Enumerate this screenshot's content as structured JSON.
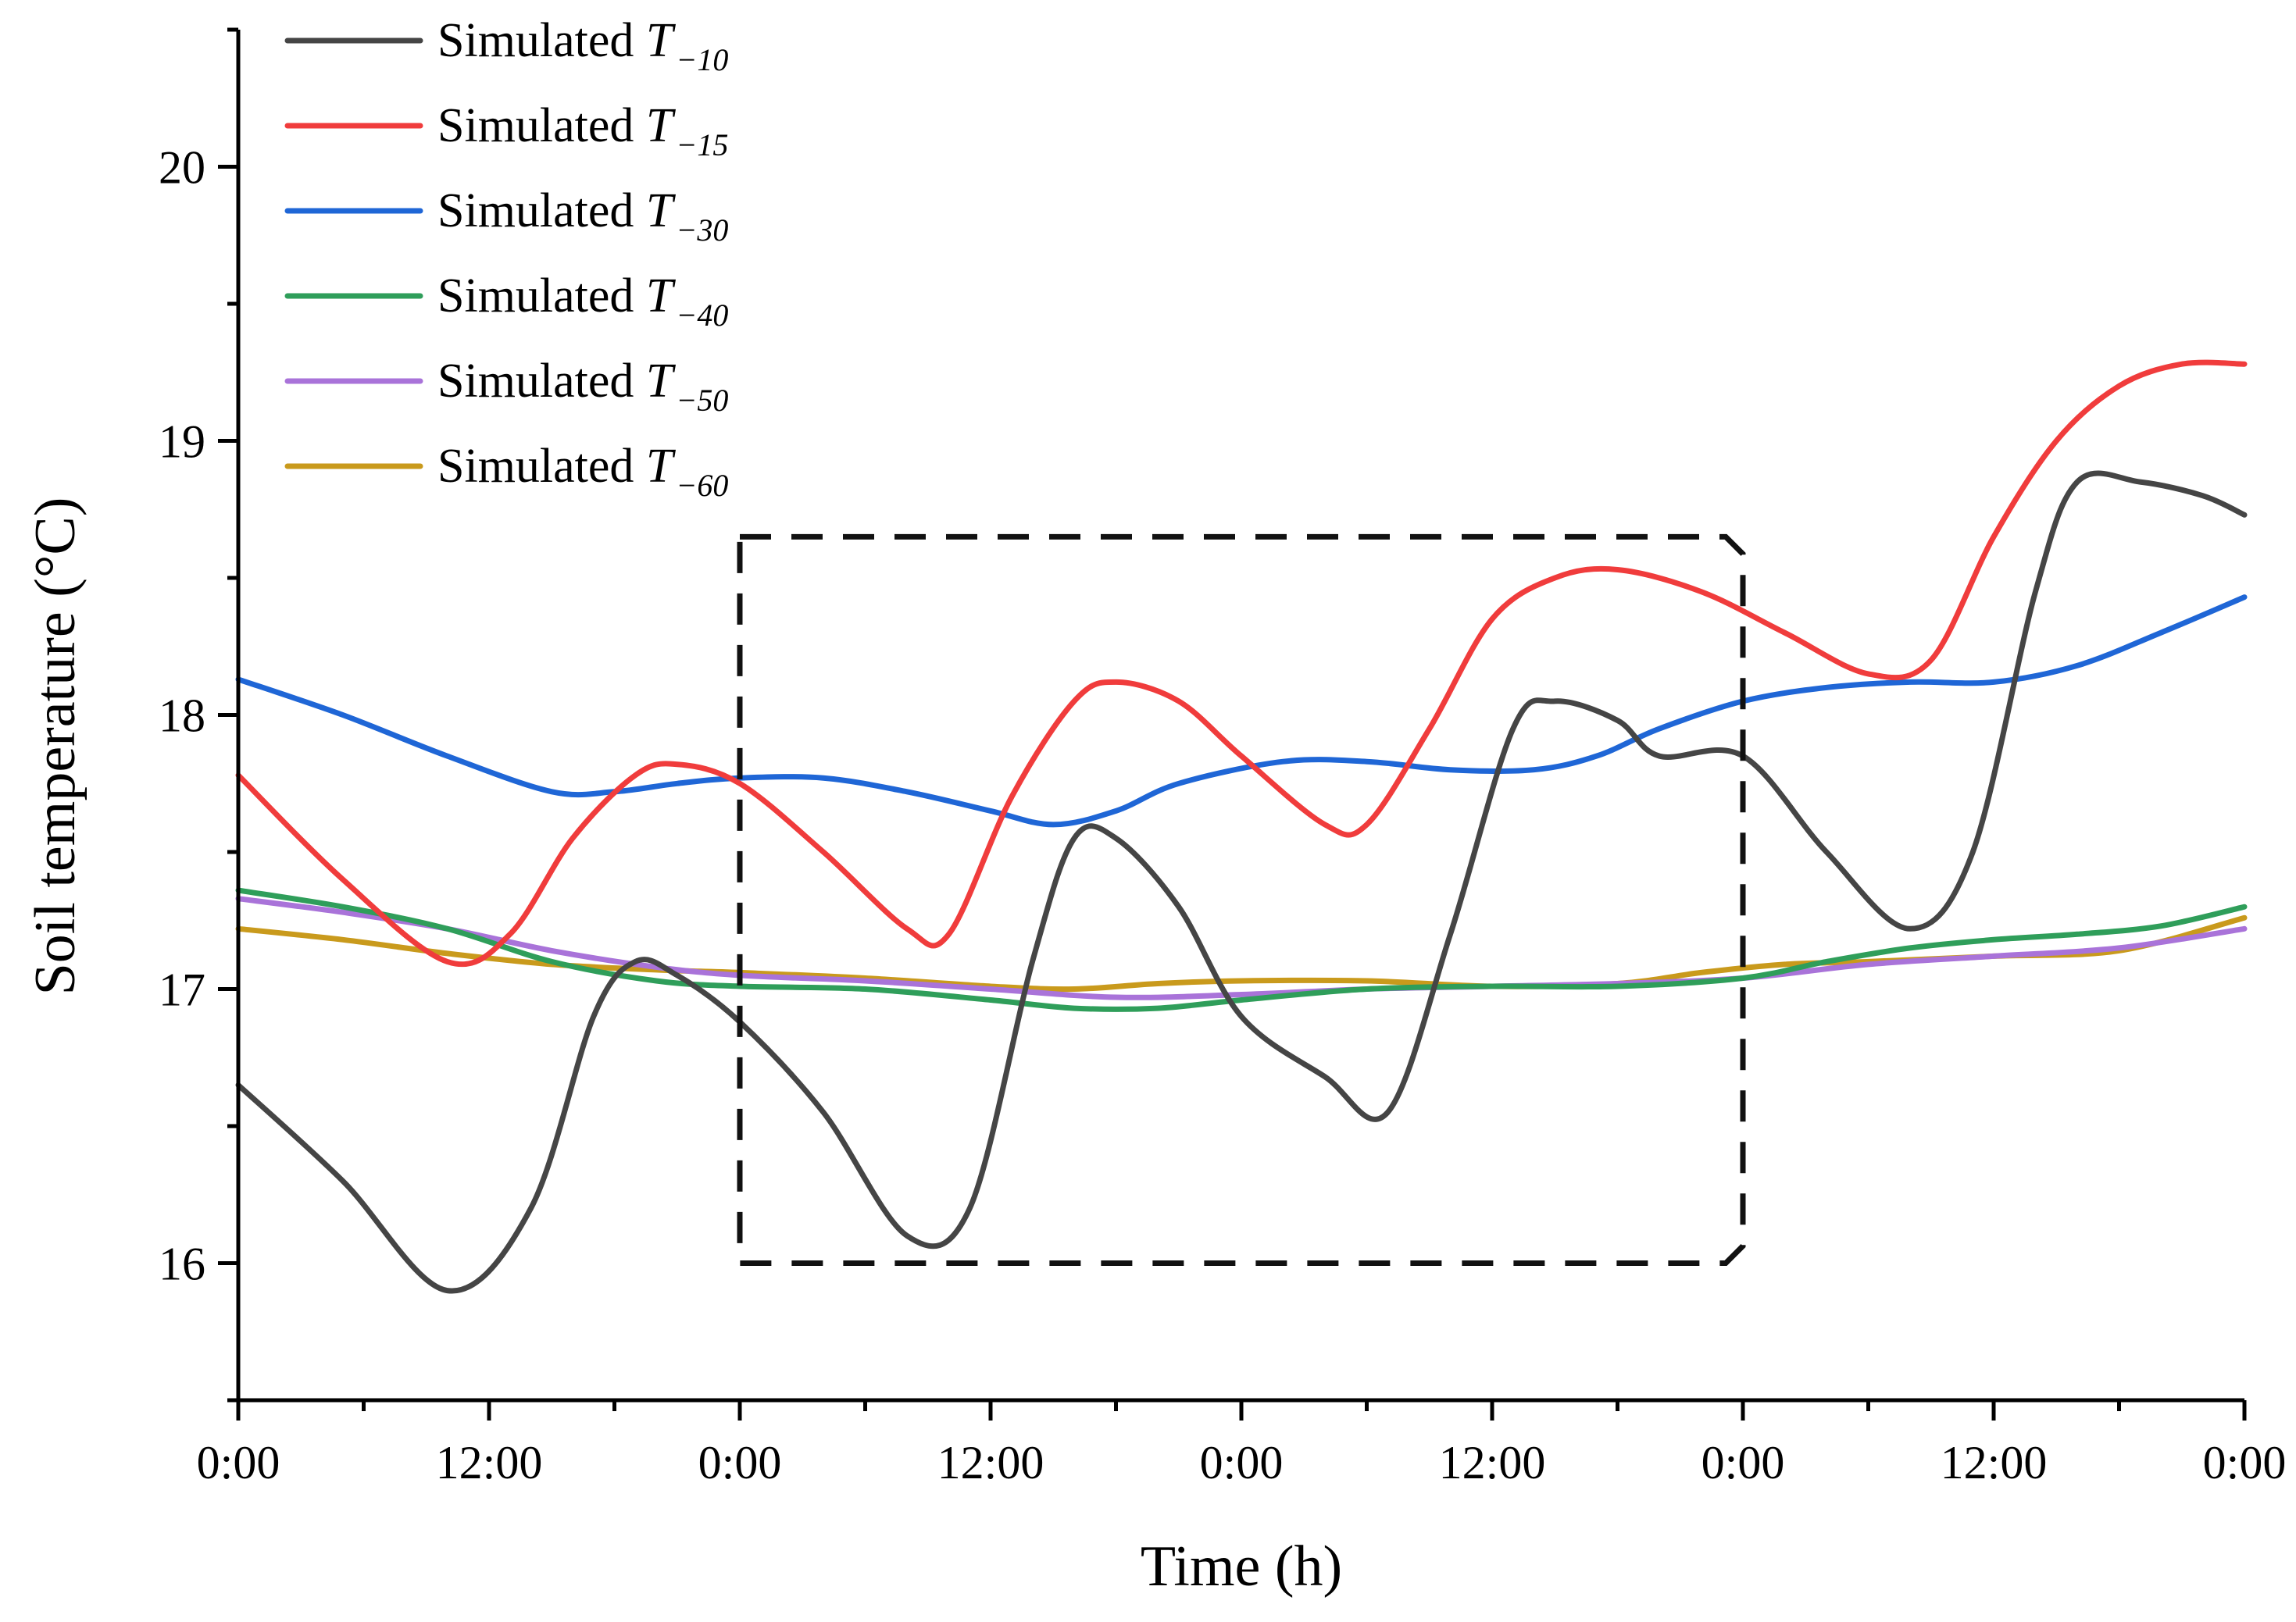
{
  "chart_data": {
    "type": "line",
    "xlabel": "Time (h)",
    "ylabel": "Soil temperature (°C)",
    "xlim": [
      0,
      96
    ],
    "ylim": [
      15.5,
      20.5
    ],
    "x_ticks": [
      0,
      12,
      24,
      36,
      48,
      60,
      72,
      84,
      96
    ],
    "x_tick_labels": [
      "0:00",
      "12:00",
      "0:00",
      "12:00",
      "0:00",
      "12:00",
      "0:00",
      "12:00",
      "0:00"
    ],
    "y_ticks": [
      16,
      17,
      18,
      19,
      20
    ],
    "y_tick_labels": [
      "16",
      "17",
      "18",
      "19",
      "20"
    ],
    "legend_position": "top-left",
    "highlight_box": {
      "x_range": [
        24,
        72
      ],
      "y_range": [
        16,
        18.65
      ],
      "style": "dashed"
    },
    "series": [
      {
        "name": "Simulated T−10",
        "prefix": "Simulated ",
        "symbol": "T",
        "subscript": "−10",
        "color": "#454545",
        "points": [
          [
            0,
            16.65
          ],
          [
            5,
            16.3
          ],
          [
            10,
            15.9
          ],
          [
            14,
            16.2
          ],
          [
            17,
            16.9
          ],
          [
            19,
            17.1
          ],
          [
            21,
            17.05
          ],
          [
            24,
            16.88
          ],
          [
            28,
            16.55
          ],
          [
            32,
            16.1
          ],
          [
            35,
            16.2
          ],
          [
            38,
            17.1
          ],
          [
            40,
            17.55
          ],
          [
            42,
            17.55
          ],
          [
            45,
            17.3
          ],
          [
            48,
            16.9
          ],
          [
            52,
            16.68
          ],
          [
            55,
            16.55
          ],
          [
            58,
            17.2
          ],
          [
            61,
            17.95
          ],
          [
            63,
            18.05
          ],
          [
            66,
            17.98
          ],
          [
            68,
            17.85
          ],
          [
            72,
            17.85
          ],
          [
            76,
            17.5
          ],
          [
            80,
            17.22
          ],
          [
            83,
            17.5
          ],
          [
            86,
            18.45
          ],
          [
            88,
            18.85
          ],
          [
            91,
            18.85
          ],
          [
            94,
            18.8
          ],
          [
            96,
            18.73
          ]
        ]
      },
      {
        "name": "Simulated T−15",
        "prefix": "Simulated ",
        "symbol": "T",
        "subscript": "−15",
        "color": "#f03c3c",
        "points": [
          [
            0,
            17.78
          ],
          [
            5,
            17.4
          ],
          [
            10,
            17.1
          ],
          [
            13,
            17.2
          ],
          [
            16,
            17.55
          ],
          [
            19,
            17.78
          ],
          [
            21,
            17.82
          ],
          [
            24,
            17.75
          ],
          [
            28,
            17.5
          ],
          [
            32,
            17.22
          ],
          [
            34,
            17.2
          ],
          [
            37,
            17.7
          ],
          [
            40,
            18.05
          ],
          [
            42,
            18.12
          ],
          [
            45,
            18.05
          ],
          [
            48,
            17.85
          ],
          [
            52,
            17.6
          ],
          [
            54,
            17.6
          ],
          [
            57,
            17.95
          ],
          [
            60,
            18.35
          ],
          [
            63,
            18.5
          ],
          [
            66,
            18.53
          ],
          [
            70,
            18.45
          ],
          [
            74,
            18.3
          ],
          [
            78,
            18.15
          ],
          [
            81,
            18.2
          ],
          [
            84,
            18.65
          ],
          [
            87,
            19.0
          ],
          [
            90,
            19.2
          ],
          [
            93,
            19.28
          ],
          [
            96,
            19.28
          ]
        ]
      },
      {
        "name": "Simulated T−30",
        "prefix": "Simulated ",
        "symbol": "T",
        "subscript": "−30",
        "color": "#1f66d6",
        "points": [
          [
            0,
            18.13
          ],
          [
            5,
            18.0
          ],
          [
            10,
            17.85
          ],
          [
            15,
            17.72
          ],
          [
            18,
            17.72
          ],
          [
            21,
            17.75
          ],
          [
            24,
            17.77
          ],
          [
            28,
            17.77
          ],
          [
            32,
            17.72
          ],
          [
            36,
            17.65
          ],
          [
            39,
            17.6
          ],
          [
            42,
            17.65
          ],
          [
            45,
            17.75
          ],
          [
            50,
            17.83
          ],
          [
            54,
            17.83
          ],
          [
            58,
            17.8
          ],
          [
            62,
            17.8
          ],
          [
            65,
            17.85
          ],
          [
            68,
            17.95
          ],
          [
            72,
            18.05
          ],
          [
            76,
            18.1
          ],
          [
            80,
            18.12
          ],
          [
            84,
            18.12
          ],
          [
            88,
            18.18
          ],
          [
            92,
            18.3
          ],
          [
            96,
            18.43
          ]
        ]
      },
      {
        "name": "Simulated T−40",
        "prefix": "Simulated ",
        "symbol": "T",
        "subscript": "−40",
        "color": "#2f9e5a",
        "points": [
          [
            0,
            17.36
          ],
          [
            5,
            17.3
          ],
          [
            10,
            17.22
          ],
          [
            15,
            17.1
          ],
          [
            20,
            17.03
          ],
          [
            24,
            17.01
          ],
          [
            30,
            17.0
          ],
          [
            36,
            16.96
          ],
          [
            40,
            16.93
          ],
          [
            44,
            16.93
          ],
          [
            48,
            16.96
          ],
          [
            54,
            17.0
          ],
          [
            60,
            17.01
          ],
          [
            66,
            17.01
          ],
          [
            72,
            17.04
          ],
          [
            76,
            17.1
          ],
          [
            80,
            17.15
          ],
          [
            84,
            17.18
          ],
          [
            88,
            17.2
          ],
          [
            92,
            17.23
          ],
          [
            96,
            17.3
          ]
        ]
      },
      {
        "name": "Simulated T−50",
        "prefix": "Simulated ",
        "symbol": "T",
        "subscript": "−50",
        "color": "#a973d9",
        "points": [
          [
            0,
            17.33
          ],
          [
            5,
            17.28
          ],
          [
            10,
            17.22
          ],
          [
            15,
            17.14
          ],
          [
            20,
            17.08
          ],
          [
            24,
            17.05
          ],
          [
            30,
            17.03
          ],
          [
            36,
            17.0
          ],
          [
            42,
            16.97
          ],
          [
            48,
            16.98
          ],
          [
            54,
            17.0
          ],
          [
            60,
            17.01
          ],
          [
            66,
            17.02
          ],
          [
            72,
            17.04
          ],
          [
            78,
            17.09
          ],
          [
            84,
            17.12
          ],
          [
            90,
            17.15
          ],
          [
            96,
            17.22
          ]
        ]
      },
      {
        "name": "Simulated T−60",
        "prefix": "Simulated ",
        "symbol": "T",
        "subscript": "−60",
        "color": "#c99a1c",
        "points": [
          [
            0,
            17.22
          ],
          [
            5,
            17.18
          ],
          [
            10,
            17.13
          ],
          [
            15,
            17.09
          ],
          [
            20,
            17.07
          ],
          [
            24,
            17.06
          ],
          [
            30,
            17.04
          ],
          [
            36,
            17.01
          ],
          [
            40,
            17.0
          ],
          [
            44,
            17.02
          ],
          [
            48,
            17.03
          ],
          [
            54,
            17.03
          ],
          [
            60,
            17.01
          ],
          [
            66,
            17.02
          ],
          [
            70,
            17.06
          ],
          [
            74,
            17.09
          ],
          [
            78,
            17.1
          ],
          [
            84,
            17.12
          ],
          [
            90,
            17.14
          ],
          [
            96,
            17.26
          ]
        ]
      }
    ]
  }
}
